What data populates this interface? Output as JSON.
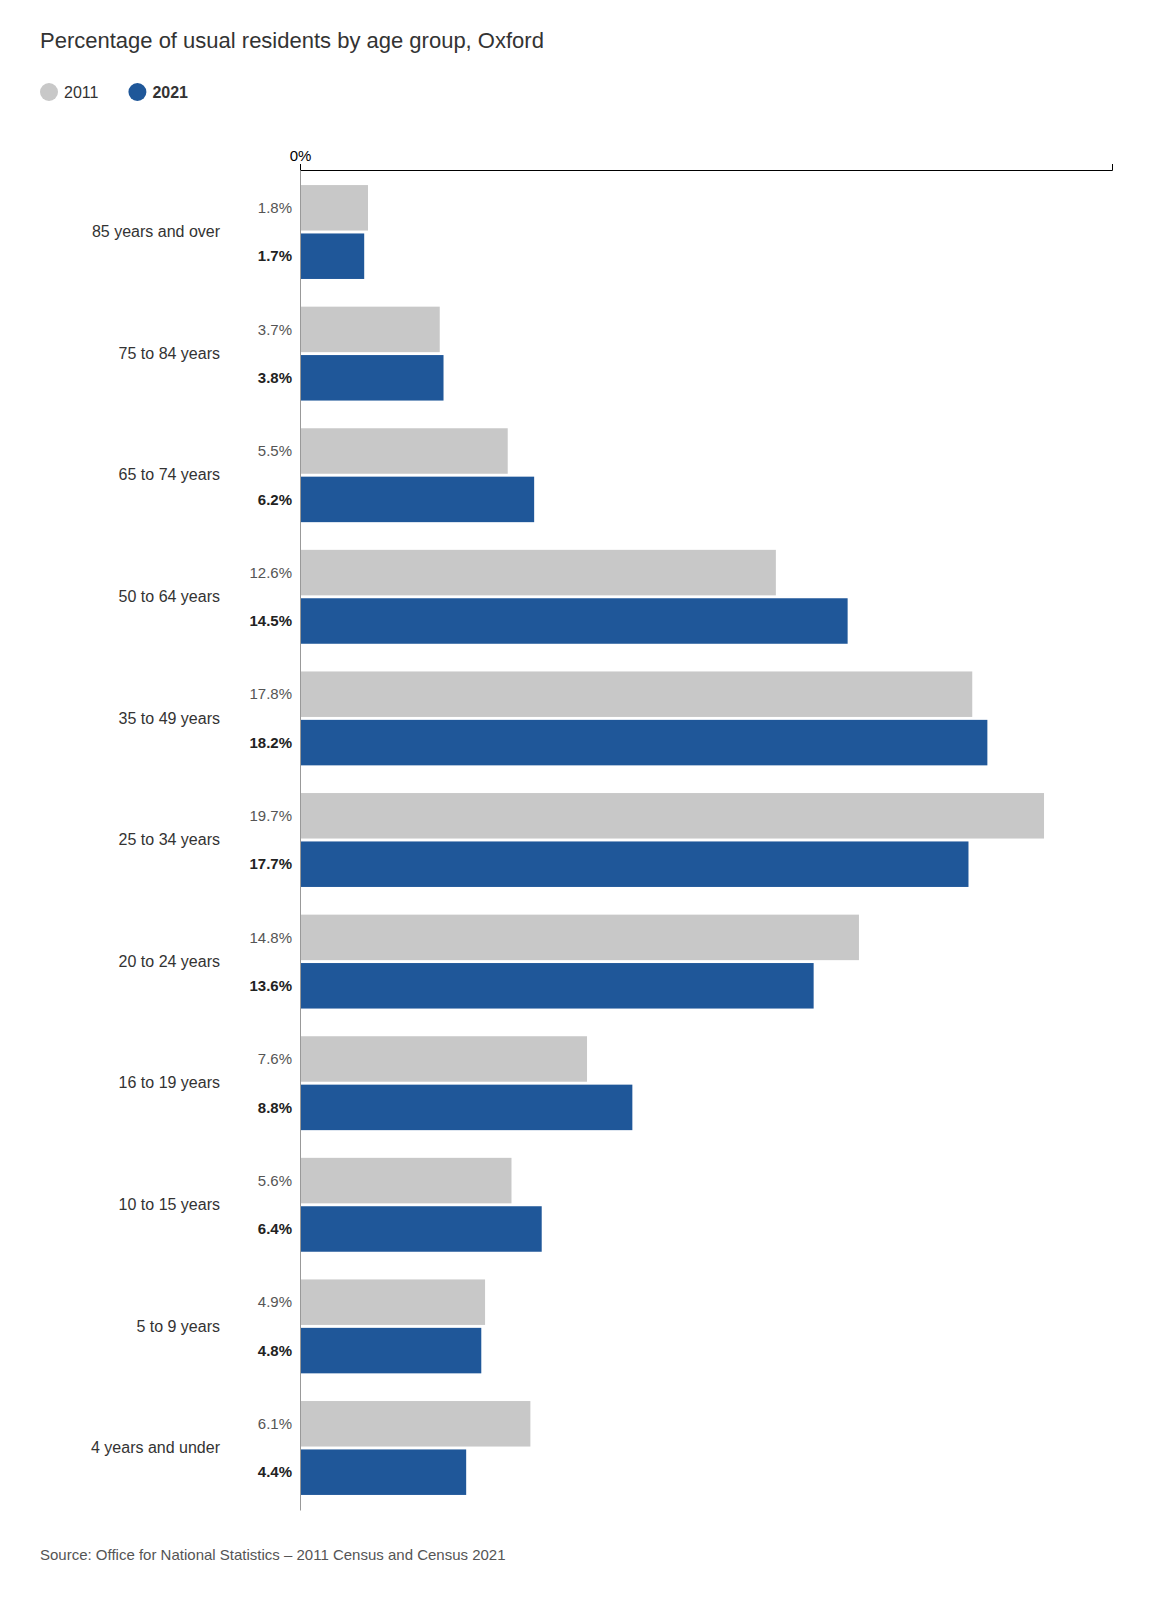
{
  "chart_data": {
    "type": "bar",
    "orientation": "horizontal",
    "title": "Percentage of usual residents by age group, Oxford",
    "annotations": [
      "Source: Office for National Statistics – 2011 Census and Census 2021"
    ],
    "categories": [
      "85 years and over",
      "75 to 84 years",
      "65 to 74 years",
      "50 to 64 years",
      "35 to 49 years",
      "25 to 34 years",
      "20 to 24 years",
      "16 to 19 years",
      "10 to 15 years",
      "5 to 9 years",
      "4 years and under"
    ],
    "series": [
      {
        "name": "2011",
        "color": "#c8c8c8",
        "values": [
          1.8,
          3.7,
          5.5,
          12.6,
          17.8,
          19.7,
          14.8,
          7.6,
          5.6,
          4.9,
          6.1
        ],
        "value_labels": [
          "1.8%",
          "3.7%",
          "5.5%",
          "12.6%",
          "17.8%",
          "19.7%",
          "14.8%",
          "7.6%",
          "5.6%",
          "4.9%",
          "6.1%"
        ]
      },
      {
        "name": "2021",
        "color": "#1f5799",
        "values": [
          1.7,
          3.8,
          6.2,
          14.5,
          18.2,
          17.7,
          13.6,
          8.8,
          6.4,
          4.8,
          4.4
        ],
        "value_labels": [
          "1.7%",
          "3.8%",
          "6.2%",
          "14.5%",
          "18.2%",
          "17.7%",
          "13.6%",
          "8.8%",
          "6.4%",
          "4.8%",
          "4.4%"
        ]
      }
    ],
    "xlim": [
      0,
      21.5
    ],
    "xticks": [
      {
        "value": 0,
        "label": "0%"
      }
    ],
    "data_labels": true,
    "legend": "top-left",
    "grid": false
  }
}
